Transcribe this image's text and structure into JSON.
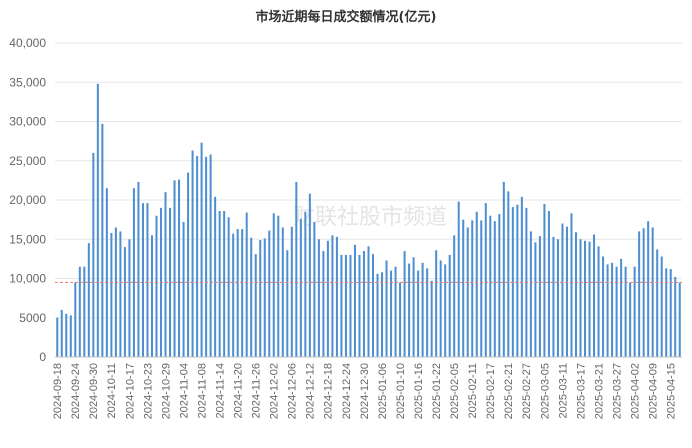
{
  "chart_data": {
    "type": "bar",
    "title": "市场近期每日成交额情况(亿元)",
    "ylim": [
      0,
      40000
    ],
    "yticks": [
      "0",
      "5000",
      "10,000",
      "15,000",
      "20,000",
      "25,000",
      "30,000",
      "35,000",
      "40,000"
    ],
    "grid": true,
    "reference_line": 9500,
    "bar_color": "#4e8fd1",
    "reference_color": "#e8786b",
    "watermark": "财联社股市频道",
    "x_tick_labels": [
      "2024-09-18",
      "2024-09-24",
      "2024-09-30",
      "2024-10-11",
      "2024-10-17",
      "2024-10-23",
      "2024-10-29",
      "2024-11-04",
      "2024-11-08",
      "2024-11-14",
      "2024-11-20",
      "2024-11-26",
      "2024-12-02",
      "2024-12-06",
      "2024-12-12",
      "2024-12-18",
      "2024-12-24",
      "2024-12-30",
      "2025-01-06",
      "2025-01-10",
      "2025-01-16",
      "2025-01-22",
      "2025-02-05",
      "2025-02-11",
      "2025-02-17",
      "2025-02-21",
      "2025-02-27",
      "2025-03-05",
      "2025-03-11",
      "2025-03-17",
      "2025-03-21",
      "2025-03-27",
      "2025-04-02",
      "2025-04-09",
      "2025-04-15"
    ],
    "label_every": 4,
    "values": [
      5000,
      6000,
      5500,
      5300,
      9500,
      11500,
      11500,
      14500,
      26000,
      34800,
      29700,
      21500,
      15800,
      16500,
      16000,
      14000,
      15000,
      21500,
      22300,
      19600,
      19600,
      15500,
      18000,
      19000,
      21000,
      19000,
      22500,
      22600,
      17200,
      23500,
      26300,
      25600,
      27300,
      25500,
      25800,
      20400,
      18600,
      18600,
      17800,
      15700,
      16300,
      16300,
      18400,
      15200,
      13100,
      14900,
      15100,
      16100,
      18300,
      18000,
      16500,
      13600,
      16600,
      22300,
      17600,
      18500,
      20800,
      17200,
      15000,
      13500,
      14800,
      15500,
      15300,
      13000,
      13000,
      13000,
      14300,
      13000,
      13500,
      14100,
      13100,
      10600,
      10800,
      12300,
      11000,
      11500,
      9500,
      13500,
      11900,
      12700,
      11000,
      12000,
      11300,
      9700,
      13600,
      12300,
      11800,
      13000,
      15500,
      19800,
      17500,
      16500,
      17400,
      18500,
      17400,
      19600,
      18000,
      17300,
      18200,
      22300,
      21100,
      19100,
      19400,
      20400,
      19000,
      16000,
      14600,
      15400,
      19500,
      18600,
      15300,
      15000,
      17000,
      16600,
      18300,
      15900,
      15000,
      14800,
      14700,
      15600,
      14100,
      12800,
      11800,
      12000,
      11500,
      12500,
      11500,
      9500,
      11500,
      16000,
      16400,
      17300,
      16500,
      13700,
      12800,
      11300,
      11200,
      10200,
      9500
    ]
  }
}
